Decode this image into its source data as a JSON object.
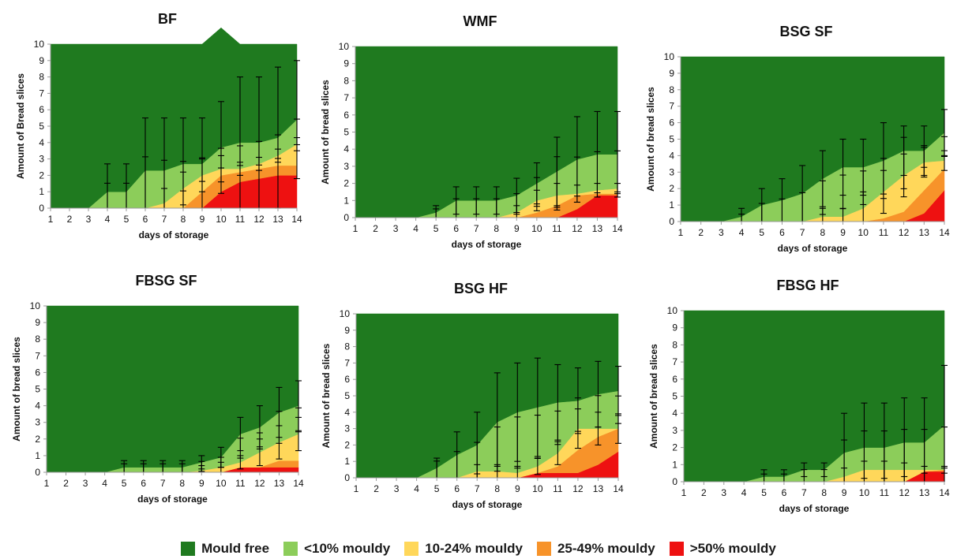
{
  "colors": {
    "mould_free": "#1f7a1f",
    "lt10": "#8ccd5a",
    "p10_24": "#ffd75a",
    "p25_49": "#f7932a",
    "gt50": "#ee1111"
  },
  "legend": {
    "mould_free": "Mould free",
    "lt10": "<10% mouldy",
    "p10_24": "10-24% mouldy",
    "p25_49": "25-49% mouldy",
    "gt50": ">50% mouldy"
  },
  "chart_data": [
    {
      "type": "area",
      "title": "BF",
      "xlabel": "days of storage",
      "ylabel": "Amount of Bread slices",
      "x": [
        1,
        2,
        3,
        4,
        5,
        6,
        7,
        8,
        9,
        10,
        11,
        12,
        13,
        14
      ],
      "ylim": [
        0,
        10
      ],
      "yticks": [
        0,
        1,
        2,
        3,
        4,
        5,
        6,
        7,
        8,
        9,
        10
      ],
      "series": [
        {
          "key": "gt50",
          "values": [
            0,
            0,
            0,
            0,
            0,
            0,
            0,
            0,
            0,
            1.0,
            1.6,
            1.8,
            2.0,
            2.0
          ]
        },
        {
          "key": "p25_49",
          "values": [
            0,
            0,
            0,
            0,
            0,
            0,
            0,
            0,
            1.0,
            1.0,
            0.6,
            0.6,
            0.6,
            0.6
          ]
        },
        {
          "key": "p10_24",
          "values": [
            0,
            0,
            0,
            0,
            0,
            0,
            0.3,
            1.2,
            1.0,
            0.4,
            0.2,
            0.3,
            0.6,
            1.3
          ]
        },
        {
          "key": "lt10",
          "values": [
            0,
            0,
            0,
            1.0,
            1.0,
            2.3,
            2.0,
            1.5,
            0.7,
            1.3,
            1.6,
            1.3,
            1.1,
            1.5
          ]
        },
        {
          "key": "mould_free",
          "values": [
            10,
            10,
            10,
            9.0,
            9.0,
            7.7,
            7.7,
            7.3,
            7.3,
            7.3,
            6.0,
            6.0,
            5.7,
            4.6
          ]
        }
      ],
      "errors": {
        "top": [
          0,
          0,
          0,
          1.7,
          1.7,
          3.2,
          3.2,
          2.8,
          2.8,
          2.8,
          4.0,
          4.0,
          4.3,
          3.6
        ],
        "lt10": [
          0,
          0,
          0,
          1.7,
          1.7,
          3.3,
          2.7,
          1.5,
          1.2,
          1.0,
          1.0,
          1.2,
          1.2,
          1.3
        ],
        "mid": [
          0,
          0,
          0,
          0,
          0,
          0,
          0.9,
          1.0,
          1.0,
          0.8,
          0.4,
          0.4,
          0.4,
          0.4
        ]
      }
    },
    {
      "type": "area",
      "title": "WMF",
      "xlabel": "days of storage",
      "ylabel": "Amount of bread slices",
      "x": [
        1,
        2,
        3,
        4,
        5,
        6,
        7,
        8,
        9,
        10,
        11,
        12,
        13,
        14
      ],
      "ylim": [
        0,
        10
      ],
      "yticks": [
        0,
        1,
        2,
        3,
        4,
        5,
        6,
        7,
        8,
        9,
        10
      ],
      "series": [
        {
          "key": "gt50",
          "values": [
            0,
            0,
            0,
            0,
            0,
            0,
            0,
            0,
            0,
            0,
            0,
            0.5,
            1.3,
            1.3
          ]
        },
        {
          "key": "p25_49",
          "values": [
            0,
            0,
            0,
            0,
            0,
            0,
            0,
            0,
            0,
            0.3,
            0.7,
            0.8,
            0.1,
            0.1
          ]
        },
        {
          "key": "p10_24",
          "values": [
            0,
            0,
            0,
            0,
            0,
            0,
            0,
            0,
            0.3,
            0.7,
            0.6,
            0.1,
            0.2,
            0.3
          ]
        },
        {
          "key": "lt10",
          "values": [
            0,
            0,
            0,
            0,
            0.3,
            1.0,
            1.0,
            1.0,
            1.0,
            1.0,
            1.4,
            2.0,
            2.1,
            2.0
          ]
        },
        {
          "key": "mould_free",
          "values": [
            10,
            10,
            10,
            10,
            9.7,
            9.0,
            9.0,
            9.0,
            8.7,
            8.0,
            7.3,
            6.6,
            6.3,
            6.3
          ]
        }
      ],
      "errors": {
        "top": [
          0,
          0,
          0,
          0,
          0.4,
          0.8,
          0.8,
          0.8,
          1.0,
          1.2,
          2.0,
          2.5,
          2.5,
          2.5
        ],
        "lt10": [
          0,
          0,
          0,
          0,
          0.6,
          1.0,
          1.0,
          1.0,
          1.0,
          1.4,
          2.6,
          1.9,
          2.0,
          2.0
        ],
        "mid": [
          0,
          0,
          0,
          0,
          0,
          0,
          0,
          0,
          0.4,
          0.6,
          0.7,
          0.5,
          0.4,
          0.3
        ]
      }
    },
    {
      "type": "area",
      "title": "BSG SF",
      "xlabel": "days of storage",
      "ylabel": "Amount of bread slices",
      "x": [
        1,
        2,
        3,
        4,
        5,
        6,
        7,
        8,
        9,
        10,
        11,
        12,
        13,
        14
      ],
      "ylim": [
        0,
        10
      ],
      "yticks": [
        0,
        1,
        2,
        3,
        4,
        5,
        6,
        7,
        8,
        9,
        10
      ],
      "series": [
        {
          "key": "gt50",
          "values": [
            0,
            0,
            0,
            0,
            0,
            0,
            0,
            0,
            0,
            0,
            0,
            0,
            0.5,
            1.9
          ]
        },
        {
          "key": "p25_49",
          "values": [
            0,
            0,
            0,
            0,
            0,
            0,
            0,
            0,
            0,
            0,
            0.2,
            0.6,
            1.4,
            1.3
          ]
        },
        {
          "key": "p10_24",
          "values": [
            0,
            0,
            0,
            0,
            0,
            0,
            0,
            0.3,
            0.3,
            0.8,
            1.6,
            2.2,
            1.7,
            0.5
          ]
        },
        {
          "key": "lt10",
          "values": [
            0,
            0,
            0,
            0.3,
            1.0,
            1.3,
            1.7,
            2.3,
            3.0,
            2.5,
            1.9,
            1.5,
            0.7,
            1.7
          ]
        },
        {
          "key": "mould_free",
          "values": [
            10,
            10,
            10,
            9.7,
            9.0,
            8.7,
            8.3,
            7.4,
            6.7,
            6.7,
            6.3,
            5.7,
            5.7,
            4.6
          ]
        }
      ],
      "errors": {
        "top": [
          0,
          0,
          0,
          0.5,
          1.0,
          1.3,
          1.7,
          1.7,
          1.7,
          1.7,
          2.3,
          1.5,
          1.5,
          1.4
        ],
        "lt10": [
          0,
          0,
          0,
          0.5,
          1.0,
          1.2,
          1.5,
          1.7,
          1.7,
          1.7,
          1.8,
          2.6,
          1.1,
          1.0
        ],
        "mid": [
          0,
          0,
          0,
          0,
          0,
          0,
          0,
          0.5,
          0.5,
          1.0,
          1.3,
          1.3,
          0.9,
          0.6
        ]
      }
    },
    {
      "type": "area",
      "title": "FBSG SF",
      "xlabel": "days of storage",
      "ylabel": "Amount of bread slices",
      "x": [
        1,
        2,
        3,
        4,
        5,
        6,
        7,
        8,
        9,
        10,
        11,
        12,
        13,
        14
      ],
      "ylim": [
        0,
        10
      ],
      "yticks": [
        0,
        1,
        2,
        3,
        4,
        5,
        6,
        7,
        8,
        9,
        10
      ],
      "series": [
        {
          "key": "gt50",
          "values": [
            0,
            0,
            0,
            0,
            0,
            0,
            0,
            0,
            0,
            0,
            0.3,
            0.3,
            0.3,
            0.3
          ]
        },
        {
          "key": "p25_49",
          "values": [
            0,
            0,
            0,
            0,
            0,
            0,
            0,
            0,
            0,
            0,
            0,
            0,
            0.4,
            0.4
          ]
        },
        {
          "key": "p10_24",
          "values": [
            0,
            0,
            0,
            0,
            0,
            0,
            0,
            0,
            0.1,
            0.3,
            0.3,
            0.9,
            1.1,
            1.6
          ]
        },
        {
          "key": "lt10",
          "values": [
            0,
            0,
            0,
            0,
            0.3,
            0.3,
            0.3,
            0.3,
            0.5,
            0.6,
            1.7,
            1.5,
            1.8,
            1.7
          ]
        },
        {
          "key": "mould_free",
          "values": [
            10,
            10,
            10,
            10,
            9.7,
            9.7,
            9.7,
            9.7,
            9.4,
            9.1,
            7.7,
            7.3,
            6.4,
            6.0
          ]
        }
      ],
      "errors": {
        "top": [
          0,
          0,
          0,
          0,
          0.4,
          0.4,
          0.4,
          0.4,
          0.4,
          0.6,
          1.0,
          1.3,
          1.5,
          1.5
        ],
        "lt10": [
          0,
          0,
          0,
          0,
          0.6,
          0.6,
          0.6,
          0.6,
          0.5,
          0.5,
          1.0,
          0.7,
          1.6,
          1.2
        ],
        "mid": [
          0,
          0,
          0,
          0,
          0,
          0,
          0,
          0,
          0.3,
          0.3,
          0.4,
          0.8,
          1.0,
          1.0
        ]
      }
    },
    {
      "type": "area",
      "title": "BSG HF",
      "xlabel": "days of storage",
      "ylabel": "Amount of bread slices",
      "x": [
        1,
        2,
        3,
        4,
        5,
        6,
        7,
        8,
        9,
        10,
        11,
        12,
        13,
        14
      ],
      "ylim": [
        0,
        10
      ],
      "yticks": [
        0,
        1,
        2,
        3,
        4,
        5,
        6,
        7,
        8,
        9,
        10
      ],
      "series": [
        {
          "key": "gt50",
          "values": [
            0,
            0,
            0,
            0,
            0,
            0,
            0,
            0,
            0,
            0.3,
            0.3,
            0.3,
            0.8,
            1.6
          ]
        },
        {
          "key": "p25_49",
          "values": [
            0,
            0,
            0,
            0,
            0,
            0,
            0,
            0,
            0,
            0,
            0.4,
            1.4,
            1.7,
            1.4
          ]
        },
        {
          "key": "p10_24",
          "values": [
            0,
            0,
            0,
            0,
            0,
            0,
            0.4,
            0.4,
            0.3,
            0.4,
            0.8,
            1.3,
            0.5,
            0
          ]
        },
        {
          "key": "lt10",
          "values": [
            0,
            0,
            0,
            0,
            0.6,
            1.4,
            1.6,
            3.0,
            3.7,
            3.6,
            3.1,
            1.7,
            2.1,
            2.3
          ]
        },
        {
          "key": "mould_free",
          "values": [
            10,
            10,
            10,
            10,
            9.4,
            8.6,
            8.0,
            6.6,
            6.0,
            5.7,
            5.4,
            5.3,
            4.9,
            4.7
          ]
        }
      ],
      "errors": {
        "top": [
          0,
          0,
          0,
          0,
          0.6,
          1.4,
          2.0,
          3.0,
          3.0,
          3.0,
          2.3,
          2.0,
          2.0,
          1.5
        ],
        "lt10": [
          0,
          0,
          0,
          0,
          1.2,
          1.5,
          1.6,
          2.0,
          2.6,
          2.2,
          1.7,
          1.7,
          1.6,
          1.4
        ],
        "mid": [
          0,
          0,
          0,
          0,
          0,
          0,
          0.4,
          0.4,
          0.4,
          0.5,
          0.7,
          1.2,
          1.0,
          0.9
        ]
      }
    },
    {
      "type": "area",
      "title": "FBSG HF",
      "xlabel": "days of storage",
      "ylabel": "Amount of bread slices",
      "x": [
        1,
        2,
        3,
        4,
        5,
        6,
        7,
        8,
        9,
        10,
        11,
        12,
        13,
        14
      ],
      "ylim": [
        0,
        10
      ],
      "yticks": [
        0,
        1,
        2,
        3,
        4,
        5,
        6,
        7,
        8,
        9,
        10
      ],
      "series": [
        {
          "key": "gt50",
          "values": [
            0,
            0,
            0,
            0,
            0,
            0,
            0,
            0,
            0,
            0,
            0,
            0,
            0.6,
            0.6
          ]
        },
        {
          "key": "p25_49",
          "values": [
            0,
            0,
            0,
            0,
            0,
            0,
            0,
            0,
            0,
            0,
            0,
            0,
            0,
            0.1
          ]
        },
        {
          "key": "p10_24",
          "values": [
            0,
            0,
            0,
            0,
            0,
            0,
            0,
            0,
            0.3,
            0.7,
            0.7,
            0.7,
            0.1,
            0
          ]
        },
        {
          "key": "lt10",
          "values": [
            0,
            0,
            0,
            0,
            0.3,
            0.3,
            0.7,
            0.7,
            1.4,
            1.3,
            1.3,
            1.6,
            1.6,
            2.6
          ]
        },
        {
          "key": "mould_free",
          "values": [
            10,
            10,
            10,
            10,
            9.7,
            9.7,
            9.3,
            9.3,
            8.3,
            8.0,
            8.0,
            7.7,
            7.7,
            6.7
          ]
        }
      ],
      "errors": {
        "top": [
          0,
          0,
          0,
          0,
          0.4,
          0.4,
          0.4,
          0.4,
          2.3,
          2.6,
          2.6,
          2.6,
          2.6,
          3.5
        ],
        "lt10": [
          0,
          0,
          0,
          0,
          0.5,
          0.5,
          0.6,
          0.6,
          2.4,
          2.7,
          2.7,
          2.6,
          2.6,
          2.0
        ],
        "mid": [
          0,
          0,
          0,
          0,
          0,
          0,
          0,
          0,
          0.5,
          0.5,
          0.5,
          0.4,
          0.2,
          0.2
        ]
      }
    }
  ]
}
